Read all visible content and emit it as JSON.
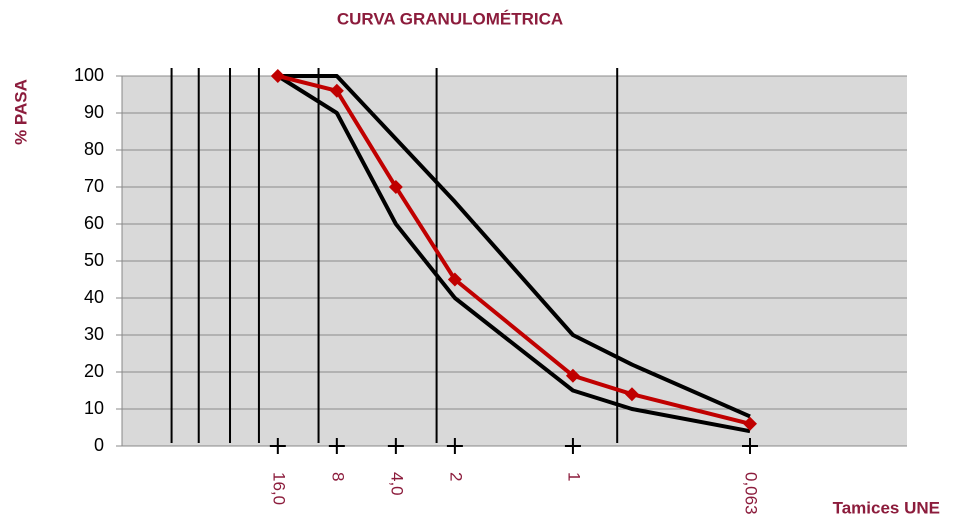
{
  "chart_data": {
    "type": "line",
    "title": "CURVA GRANULOMÉTRICA",
    "y_label": "% PASA",
    "x_label": "Tamices UNE",
    "x": [
      1,
      2,
      3,
      4,
      6,
      7,
      9
    ],
    "series": [
      {
        "color": "#000000",
        "width": 4,
        "marker": false,
        "values": [
          100,
          100,
          83,
          66,
          30,
          22,
          8
        ]
      },
      {
        "color": "#000000",
        "width": 4,
        "marker": false,
        "values": [
          100,
          90,
          60,
          40,
          15,
          10,
          4
        ]
      },
      {
        "color": "#c00000",
        "width": 4,
        "marker": true,
        "values": [
          100,
          96,
          70,
          45,
          19,
          14,
          6
        ]
      }
    ],
    "xlim": [
      -1.64,
      11.66
    ],
    "xticks": [
      {
        "value": 1,
        "label": "16,0"
      },
      {
        "value": 2,
        "label": "8"
      },
      {
        "value": 3,
        "label": "4,0"
      },
      {
        "value": 4,
        "label": "2"
      },
      {
        "value": 6,
        "label": "1"
      },
      {
        "value": 9,
        "label": "0,063"
      }
    ],
    "vertical_lines": [
      -0.8,
      -0.34,
      0.19,
      0.68,
      1.69,
      3.69,
      6.75
    ],
    "ylim": [
      0,
      100
    ],
    "yticks": [
      0,
      10,
      20,
      30,
      40,
      50,
      60,
      70,
      80,
      90,
      100
    ],
    "grid": true,
    "background": "#d9d9d9"
  }
}
